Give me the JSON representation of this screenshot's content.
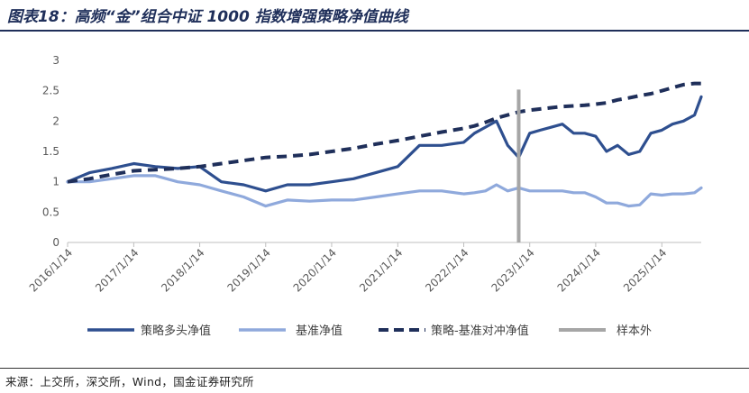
{
  "title": "图表18：高频“金”组合中证 1000 指数增强策略净值曲线",
  "source": "来源：上交所，深交所，Wind，国金证券研究所",
  "chart_data": {
    "type": "line",
    "title": "图表18：高频“金”组合中证 1000 指数增强策略净值曲线",
    "xlabel": "",
    "ylabel": "",
    "ylim": [
      0,
      3
    ],
    "yticks": [
      "0",
      "0.5",
      "1",
      "1.5",
      "2",
      "2.5",
      "3"
    ],
    "xticks": [
      "2016/1/14",
      "2017/1/14",
      "2018/1/14",
      "2019/1/14",
      "2020/1/14",
      "2021/1/14",
      "2022/1/14",
      "2023/1/14",
      "2024/1/14",
      "2025/1/14"
    ],
    "grid": false,
    "legend_position": "bottom",
    "x": [
      "2016/1/14",
      "2016/5/14",
      "2016/9/14",
      "2017/1/14",
      "2017/5/14",
      "2017/9/14",
      "2018/1/14",
      "2018/5/14",
      "2018/9/14",
      "2019/1/14",
      "2019/5/14",
      "2019/9/14",
      "2020/1/14",
      "2020/5/14",
      "2020/9/14",
      "2021/1/14",
      "2021/5/14",
      "2021/9/14",
      "2022/1/14",
      "2022/3/14",
      "2022/5/14",
      "2022/7/14",
      "2022/9/14",
      "2022/11/14",
      "2023/1/14",
      "2023/3/14",
      "2023/5/14",
      "2023/7/14",
      "2023/9/14",
      "2023/11/14",
      "2024/1/14",
      "2024/3/14",
      "2024/5/14",
      "2024/7/14",
      "2024/9/14",
      "2024/11/14",
      "2025/1/14",
      "2025/3/14",
      "2025/5/14",
      "2025/7/14",
      "2025/8/20"
    ],
    "series": [
      {
        "name": "策略多头净值",
        "color": "#2e4f8f",
        "style": "solid",
        "values": [
          1.0,
          1.15,
          1.22,
          1.3,
          1.25,
          1.22,
          1.25,
          1.0,
          0.95,
          0.85,
          0.95,
          0.95,
          1.0,
          1.05,
          1.15,
          1.25,
          1.6,
          1.6,
          1.65,
          1.8,
          1.9,
          2.0,
          1.6,
          1.4,
          1.8,
          1.85,
          1.9,
          1.95,
          1.8,
          1.8,
          1.75,
          1.5,
          1.6,
          1.45,
          1.5,
          1.8,
          1.85,
          1.95,
          2.0,
          2.1,
          2.4
        ]
      },
      {
        "name": "基准净值",
        "color": "#8fa9dc",
        "style": "solid",
        "values": [
          1.0,
          1.0,
          1.05,
          1.1,
          1.1,
          1.0,
          0.95,
          0.85,
          0.75,
          0.6,
          0.7,
          0.68,
          0.7,
          0.7,
          0.75,
          0.8,
          0.85,
          0.85,
          0.8,
          0.82,
          0.85,
          0.95,
          0.85,
          0.9,
          0.85,
          0.85,
          0.85,
          0.85,
          0.82,
          0.82,
          0.75,
          0.65,
          0.65,
          0.6,
          0.62,
          0.8,
          0.78,
          0.8,
          0.8,
          0.82,
          0.9
        ]
      },
      {
        "name": "策略-基准对冲净值",
        "color": "#1f2f5a",
        "style": "dashed",
        "values": [
          1.0,
          1.05,
          1.12,
          1.18,
          1.2,
          1.22,
          1.25,
          1.3,
          1.35,
          1.4,
          1.42,
          1.45,
          1.5,
          1.55,
          1.62,
          1.68,
          1.75,
          1.82,
          1.88,
          1.92,
          1.98,
          2.05,
          2.1,
          2.15,
          2.18,
          2.2,
          2.22,
          2.24,
          2.25,
          2.26,
          2.28,
          2.3,
          2.35,
          2.38,
          2.42,
          2.45,
          2.5,
          2.55,
          2.6,
          2.62,
          2.62
        ]
      },
      {
        "name": "样本外",
        "color": "#a6a6a6",
        "style": "vline",
        "x_at": "2022/11/14"
      }
    ]
  }
}
